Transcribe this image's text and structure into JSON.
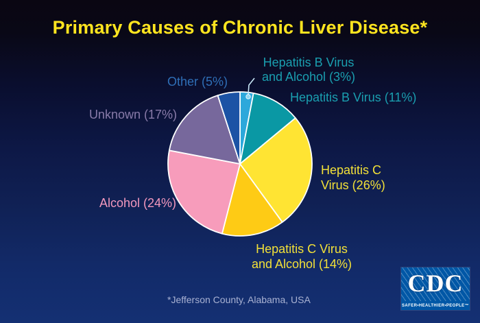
{
  "slide": {
    "title": "Primary Causes of Chronic Liver Disease*",
    "title_color": "#FFE51F",
    "footnote": "*Jefferson County, Alabama, USA",
    "background_top": "#0A0612",
    "background_bottom": "#143073"
  },
  "chart_data": {
    "type": "pie",
    "title": "Primary Causes of Chronic Liver Disease*",
    "unit": "percent",
    "start_angle_deg": 0,
    "direction": "clockwise",
    "border_color": "#FFFFFF",
    "slices": [
      {
        "label": "Hepatitis B Virus and Alcohol",
        "value": 3,
        "color": "#2CA8DB"
      },
      {
        "label": "Hepatitis B Virus",
        "value": 11,
        "color": "#0A98A4"
      },
      {
        "label": "Hepatitis C Virus",
        "value": 26,
        "color": "#FFE433"
      },
      {
        "label": "Hepatitis C Virus and Alcohol",
        "value": 14,
        "color": "#FECB15"
      },
      {
        "label": "Alcohol",
        "value": 24,
        "color": "#F79CBB"
      },
      {
        "label": "Unknown",
        "value": 17,
        "color": "#77689C"
      },
      {
        "label": "Other",
        "value": 5,
        "color": "#1C53A5"
      }
    ]
  },
  "labels": {
    "hbv_alcohol": {
      "text": "Hepatitis B Virus\nand Alcohol (3%)",
      "color": "#1A9FB0"
    },
    "hbv": {
      "text": "Hepatitis B Virus (11%)",
      "color": "#1A9FB0"
    },
    "hcv": {
      "text": "Hepatitis C\nVirus (26%)",
      "color": "#F2E038"
    },
    "hcv_alcohol": {
      "text": "Hepatitis C Virus\nand Alcohol (14%)",
      "color": "#F2E038"
    },
    "alcohol": {
      "text": "Alcohol (24%)",
      "color": "#F298BE"
    },
    "unknown": {
      "text": "Unknown (17%)",
      "color": "#897BA9"
    },
    "other": {
      "text": "Other (5%)",
      "color": "#2F6FB7"
    }
  },
  "logo": {
    "text": "CDC",
    "tagline": "SAFER•HEALTHIER•PEOPLE™",
    "box_color": "#0057A6"
  }
}
